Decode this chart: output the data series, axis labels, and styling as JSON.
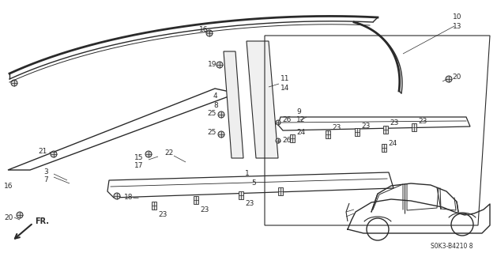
{
  "bg_color": "#ffffff",
  "line_color": "#2a2a2a",
  "diagram_code": "S0K3-B4210 8",
  "fig_w": 6.29,
  "fig_h": 3.2,
  "dpi": 100
}
